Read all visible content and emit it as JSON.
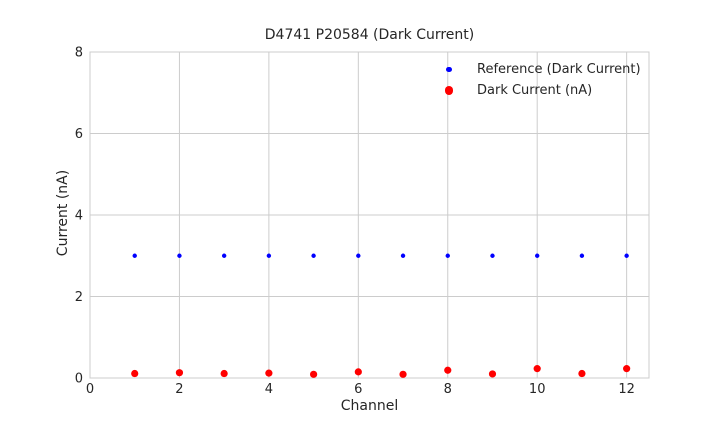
{
  "figure": {
    "background": "#ffffff",
    "text_color": "#262626",
    "grid_color": "#cccccc"
  },
  "chart_data": {
    "type": "scatter",
    "title": "D4741 P20584 (Dark Current)",
    "xlabel": "Channel",
    "ylabel": "Current (nA)",
    "xlim": [
      0,
      12.5
    ],
    "ylim": [
      0,
      8
    ],
    "xticks": [
      0,
      2,
      4,
      6,
      8,
      10,
      12
    ],
    "yticks": [
      0,
      2,
      4,
      6,
      8
    ],
    "grid": true,
    "legend_position": "upper right",
    "legend_frame": false,
    "x": [
      1,
      2,
      3,
      4,
      5,
      6,
      7,
      8,
      9,
      10,
      11,
      12
    ],
    "series": [
      {
        "name": "Reference (Dark Current)",
        "color": "#0000ff",
        "marker": "circle",
        "marker_radius": 2.2,
        "values": [
          3.0,
          3.0,
          3.0,
          3.0,
          3.0,
          3.0,
          3.0,
          3.0,
          3.0,
          3.0,
          3.0,
          3.0
        ]
      },
      {
        "name": "Dark Current (nA)",
        "color": "#ff0000",
        "marker": "circle",
        "marker_radius": 3.6,
        "values": [
          0.11,
          0.13,
          0.11,
          0.12,
          0.09,
          0.15,
          0.09,
          0.19,
          0.1,
          0.23,
          0.11,
          0.23
        ]
      }
    ]
  }
}
